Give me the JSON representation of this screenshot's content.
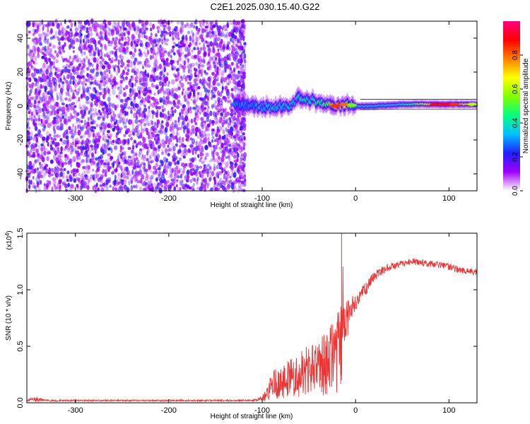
{
  "title": "C2E1.2025.030.15.40.G22",
  "chart_data": [
    {
      "type": "heatmap",
      "xlabel": "Height of straight line (km)",
      "ylabel": "Frequency (Hz)",
      "xlim": [
        -352,
        130
      ],
      "ylim": [
        -50,
        50
      ],
      "xticks": [
        -300,
        -200,
        -100,
        0,
        100
      ],
      "yticks": [
        -40,
        -20,
        0,
        20,
        40
      ],
      "xtick_labels": [
        "-300",
        "-200",
        "-100",
        "0",
        "100"
      ],
      "ytick_labels": [
        "-40",
        "-20",
        "0",
        "20",
        "40"
      ],
      "colorbar": {
        "label": "Normalized spectral amplitude",
        "range": [
          0,
          1
        ],
        "ticks": [
          0.0,
          0.2,
          0.4,
          0.6,
          0.8
        ],
        "tick_labels": [
          "0.0",
          "0.2",
          "0.4",
          "0.6",
          "0.8"
        ],
        "colors": [
          "#ffffff",
          "#a000ff",
          "#2020ff",
          "#00c0ff",
          "#00ff80",
          "#80ff00",
          "#ffff00",
          "#ff8000",
          "#ff0000",
          "#ff0080"
        ]
      },
      "noise_region": {
        "x_start": -352,
        "x_end": -118,
        "f_min": -50,
        "f_max": 50
      },
      "signal_track": {
        "x": [
          -130,
          -110,
          -90,
          -70,
          -60,
          -50,
          -40,
          -30,
          -20,
          -10,
          0,
          20,
          50,
          80,
          100,
          130
        ],
        "freq": [
          2,
          0,
          -1,
          0,
          5,
          4,
          2,
          1,
          0,
          1,
          0,
          0,
          1,
          1,
          1,
          1
        ],
        "peak_amplitude": [
          0.3,
          0.3,
          0.35,
          0.35,
          0.4,
          0.4,
          0.45,
          0.55,
          0.8,
          0.6,
          0.35,
          0.35,
          0.4,
          0.7,
          0.9,
          0.55
        ]
      },
      "grid": false
    },
    {
      "type": "line",
      "xlabel": "Height of straight line (km)",
      "ylabel": "SNR (10 * v/v)",
      "y_scale_label": "(x10",
      "y_scale_exp": "4",
      "y_scale_close": ")",
      "xlim": [
        -352,
        130
      ],
      "ylim": [
        0,
        1.5
      ],
      "xticks": [
        -300,
        -200,
        -100,
        0,
        100
      ],
      "yticks": [
        0.0,
        0.5,
        1.0,
        1.5
      ],
      "xtick_labels": [
        "-300",
        "-200",
        "-100",
        "0",
        "100"
      ],
      "ytick_labels": [
        "0.0",
        "0.5",
        "1.0",
        "1.5"
      ],
      "line_color": "#ee3333",
      "series": [
        {
          "x": [
            -352,
            -345,
            -330,
            -300,
            -250,
            -200,
            -150,
            -110,
            -100,
            -95,
            -90,
            -80,
            -70,
            -60,
            -50,
            -40,
            -30,
            -25,
            -20,
            -16,
            -14,
            -12,
            -10,
            -5,
            0,
            10,
            20,
            30,
            40,
            50,
            60,
            70,
            80,
            90,
            100,
            110,
            120,
            130
          ],
          "y": [
            0.02,
            0.03,
            0.02,
            0.02,
            0.02,
            0.02,
            0.02,
            0.02,
            0.04,
            0.12,
            0.2,
            0.25,
            0.28,
            0.32,
            0.36,
            0.4,
            0.45,
            0.5,
            0.55,
            0.6,
            0.9,
            0.7,
            0.72,
            0.82,
            0.88,
            1.0,
            1.12,
            1.18,
            1.21,
            1.23,
            1.25,
            1.24,
            1.23,
            1.22,
            1.2,
            1.18,
            1.16,
            1.16
          ],
          "spread": [
            0.01,
            0.03,
            0.01,
            0.01,
            0.01,
            0.01,
            0.01,
            0.01,
            0.03,
            0.08,
            0.12,
            0.15,
            0.17,
            0.2,
            0.22,
            0.25,
            0.28,
            0.3,
            0.33,
            0.35,
            0.5,
            0.2,
            0.18,
            0.12,
            0.08,
            0.06,
            0.05,
            0.04,
            0.03,
            0.03,
            0.03,
            0.03,
            0.03,
            0.03,
            0.03,
            0.03,
            0.03,
            0.03
          ]
        }
      ],
      "spike": {
        "x": -15,
        "y": 1.52
      },
      "grid": false
    }
  ]
}
